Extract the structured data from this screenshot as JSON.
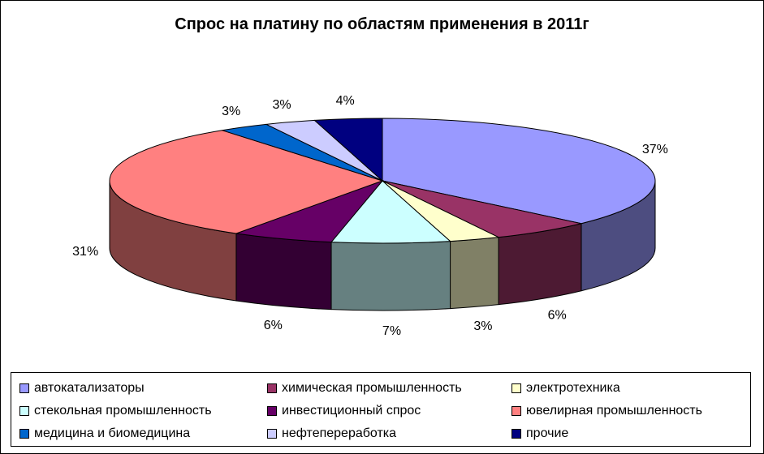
{
  "chart_data": {
    "type": "pie",
    "title": "Спрос на платину  по областям применения в 2011г",
    "slices": [
      {
        "label": "автокатализаторы",
        "value": 37,
        "display": "37%",
        "color": "#9999ff",
        "side": "#4d4d80"
      },
      {
        "label": "химическая промышленность",
        "value": 6,
        "display": "6%",
        "color": "#993366",
        "side": "#4d1a33"
      },
      {
        "label": "электротехника",
        "value": 3,
        "display": "3%",
        "color": "#ffffcc",
        "side": "#808066"
      },
      {
        "label": "стекольная промышленность",
        "value": 7,
        "display": "7%",
        "color": "#ccffff",
        "side": "#668080"
      },
      {
        "label": "инвестиционный спрос",
        "value": 6,
        "display": "6%",
        "color": "#660066",
        "side": "#330033"
      },
      {
        "label": "ювелирная промышленность",
        "value": 31,
        "display": "31%",
        "color": "#ff8080",
        "side": "#804040"
      },
      {
        "label": "медицина и биомедицина",
        "value": 3,
        "display": "3%",
        "color": "#0066cc",
        "side": "#003366"
      },
      {
        "label": "нефтепереработка",
        "value": 3,
        "display": "3%",
        "color": "#ccccff",
        "side": "#666680"
      },
      {
        "label": "прочие",
        "value": 4,
        "display": "4%",
        "color": "#000080",
        "side": "#000040"
      }
    ],
    "legend": {
      "position": "bottom",
      "columns": 3
    }
  }
}
